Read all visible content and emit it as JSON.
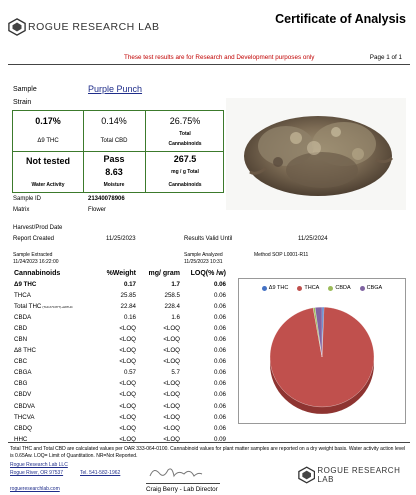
{
  "header": {
    "logo_text": "ROGUE RESEARCH LAB",
    "title": "Certificate of Analysis",
    "disclaimer": "These test results are for Research and Development purposes only",
    "page": "Page 1 of 1"
  },
  "sample": {
    "sample_label": "Sample",
    "strain_label": "Strain",
    "strain_value": "Purple Punch",
    "sample_id_label": "Sample ID",
    "sample_id": "21340078906",
    "matrix_label": "Matrix",
    "matrix": "Flower",
    "harvest_label": "Harvest/Prod Date",
    "reported_label": "Report Created",
    "reported": "11/25/2023",
    "valid_label": "Results Valid Until",
    "valid": "11/25/2024",
    "extracted_label": "Sample Extracted",
    "extracted": "11/24/2023 16:22:00",
    "analyzed_label": "Sample Analyzed",
    "analyzed": "11/25/2023 10:31",
    "method": "Method SOP L0001-R11"
  },
  "summary": {
    "thc_value": "0.17%",
    "thc_label": "Δ9 THC",
    "cbd_value": "0.14%",
    "cbd_label": "Total CBD",
    "total_value": "26.75%",
    "total_label_1": "Total",
    "total_label_2": "Cannabinoids",
    "water_value": "Not tested",
    "water_label": "Water Activity",
    "moisture_status": "Pass",
    "moisture_value": "8.63",
    "moisture_label": "Moisture",
    "mg_value": "267.5",
    "mg_unit": "mg / g Total",
    "mg_label": "Cannabinoids"
  },
  "table": {
    "headers": [
      "Cannabinoids",
      "%Weight",
      "mg/ gram",
      "LOQ(% /w)"
    ],
    "rows": [
      {
        "name": "Δ9 THC",
        "weight": "0.17",
        "mg": "1.7",
        "loq": "0.06",
        "bold": true
      },
      {
        "name": "THCA",
        "weight": "25.85",
        "mg": "258.5",
        "loq": "0.06",
        "bold": false
      },
      {
        "name": "Total THC",
        "sub": "(THCA*0.877)+Δ9THC",
        "weight": "22.84",
        "mg": "228.4",
        "loq": "0.06",
        "bold": false
      },
      {
        "name": "CBDA",
        "weight": "0.16",
        "mg": "1.6",
        "loq": "0.06",
        "bold": false
      },
      {
        "name": "CBD",
        "weight": "<LOQ",
        "mg": "<LOQ",
        "loq": "0.06",
        "bold": false
      },
      {
        "name": "CBN",
        "weight": "<LOQ",
        "mg": "<LOQ",
        "loq": "0.06",
        "bold": false
      },
      {
        "name": "Δ8 THC",
        "weight": "<LOQ",
        "mg": "<LOQ",
        "loq": "0.06",
        "bold": false
      },
      {
        "name": "CBC",
        "weight": "<LOQ",
        "mg": "<LOQ",
        "loq": "0.06",
        "bold": false
      },
      {
        "name": "CBGA",
        "weight": "0.57",
        "mg": "5.7",
        "loq": "0.06",
        "bold": false
      },
      {
        "name": "CBG",
        "weight": "<LOQ",
        "mg": "<LOQ",
        "loq": "0.06",
        "bold": false
      },
      {
        "name": "CBDV",
        "weight": "<LOQ",
        "mg": "<LOQ",
        "loq": "0.06",
        "bold": false
      },
      {
        "name": "CBDVA",
        "weight": "<LOQ",
        "mg": "<LOQ",
        "loq": "0.06",
        "bold": false
      },
      {
        "name": "THCVA",
        "weight": "<LOQ",
        "mg": "<LOQ",
        "loq": "0.06",
        "bold": false
      },
      {
        "name": "CBDQ",
        "weight": "<LOQ",
        "mg": "<LOQ",
        "loq": "0.06",
        "bold": false
      },
      {
        "name": "HHC",
        "weight": "<LOQ",
        "mg": "<LOQ",
        "loq": "0.09",
        "bold": false
      }
    ]
  },
  "chart_data": {
    "type": "pie",
    "title": "",
    "legend_position": "top",
    "slices": [
      {
        "name": "Δ9 THC",
        "value": 0.17,
        "color": "#4472c4"
      },
      {
        "name": "THCA",
        "value": 25.85,
        "color": "#c0504d"
      },
      {
        "name": "CBDA",
        "value": 0.16,
        "color": "#9bbb59"
      },
      {
        "name": "CBGA",
        "value": 0.57,
        "color": "#8064a2"
      }
    ]
  },
  "footer": {
    "note": "Total THC and Total CBD are calculated values per OAR 333-064-0100.  Cannabinoid values for plant matter samples are reported on a dry weight basis. Water activity action level is 0.65Aw. LOQ= Limit of Quantitation. NR=Not Reported.",
    "company": "Rogue Research Lab LLC",
    "city": "Rogue River, OR 97537",
    "tel": "Tel.  541-582-1962",
    "website": "rogueresearchlab.com",
    "director": "Craig Berry - Lab Director",
    "logo_text": "ROGUE RESEARCH LAB"
  }
}
